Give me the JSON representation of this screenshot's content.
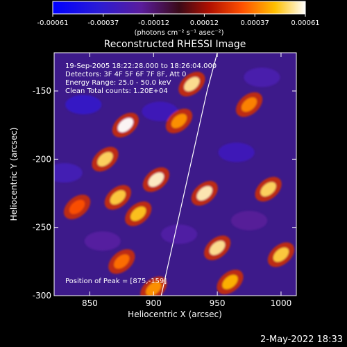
{
  "chart_data": {
    "type": "heatmap",
    "title": "Reconstructed RHESSI Image",
    "xlabel": "Heliocentric X (arcsec)",
    "ylabel": "Heliocentric Y (arcsec)",
    "xlim": [
      822,
      1012
    ],
    "ylim": [
      -300,
      -122
    ],
    "xticks": [
      850,
      900,
      950,
      1000
    ],
    "yticks": [
      -150,
      -200,
      -250,
      -300
    ],
    "colorbar": {
      "min": -0.00061,
      "max": 0.00061,
      "tick_labels": [
        "-0.00061",
        "-0.00037",
        "-0.00012",
        "0.00012",
        "0.00037",
        "0.00061"
      ],
      "unit_label": "(photons cm⁻² s⁻¹ asec⁻²)"
    },
    "info_lines": [
      "19-Sep-2005 18:22:28.000 to 18:26:04.000",
      "Detectors: 3F 4F 5F 6F 7F 8F, Att 0",
      "Energy Range: 25.0 - 50.0 keV",
      "Clean    Total counts: 1.20E+04"
    ],
    "peak_label": "Position of Peak = [875,-159]",
    "peak": [
      875,
      -159
    ],
    "limb_curve": [
      [
        906,
        -300
      ],
      [
        918,
        -250
      ],
      [
        930,
        -200
      ],
      [
        942,
        -150
      ],
      [
        950,
        -122
      ]
    ],
    "hotspots": [
      {
        "x": 878,
        "y": -175,
        "intensity": 0.00061
      },
      {
        "x": 862,
        "y": -200,
        "intensity": 0.00052
      },
      {
        "x": 902,
        "y": -215,
        "intensity": 0.00058
      },
      {
        "x": 872,
        "y": -228,
        "intensity": 0.0005
      },
      {
        "x": 888,
        "y": -240,
        "intensity": 0.00048
      },
      {
        "x": 930,
        "y": -145,
        "intensity": 0.00055
      },
      {
        "x": 920,
        "y": -172,
        "intensity": 0.0004
      },
      {
        "x": 940,
        "y": -225,
        "intensity": 0.00057
      },
      {
        "x": 950,
        "y": -265,
        "intensity": 0.00055
      },
      {
        "x": 990,
        "y": -222,
        "intensity": 0.00052
      },
      {
        "x": 1000,
        "y": -270,
        "intensity": 0.0005
      },
      {
        "x": 960,
        "y": -290,
        "intensity": 0.00045
      },
      {
        "x": 875,
        "y": -275,
        "intensity": 0.00035
      },
      {
        "x": 840,
        "y": -235,
        "intensity": 0.0003
      },
      {
        "x": 900,
        "y": -295,
        "intensity": 0.0004
      },
      {
        "x": 975,
        "y": -160,
        "intensity": 0.00038
      }
    ],
    "cold_regions": [
      {
        "x": 845,
        "y": -160,
        "intensity": -0.00035
      },
      {
        "x": 905,
        "y": -165,
        "intensity": -0.0003
      },
      {
        "x": 965,
        "y": -195,
        "intensity": -0.0003
      },
      {
        "x": 985,
        "y": -140,
        "intensity": -0.00025
      },
      {
        "x": 830,
        "y": -210,
        "intensity": -0.00028
      },
      {
        "x": 860,
        "y": -260,
        "intensity": -0.0002
      },
      {
        "x": 920,
        "y": -255,
        "intensity": -0.00022
      },
      {
        "x": 975,
        "y": -245,
        "intensity": -0.00018
      }
    ],
    "grid": false
  },
  "footer": {
    "date": "2-May-2022 18:33"
  }
}
